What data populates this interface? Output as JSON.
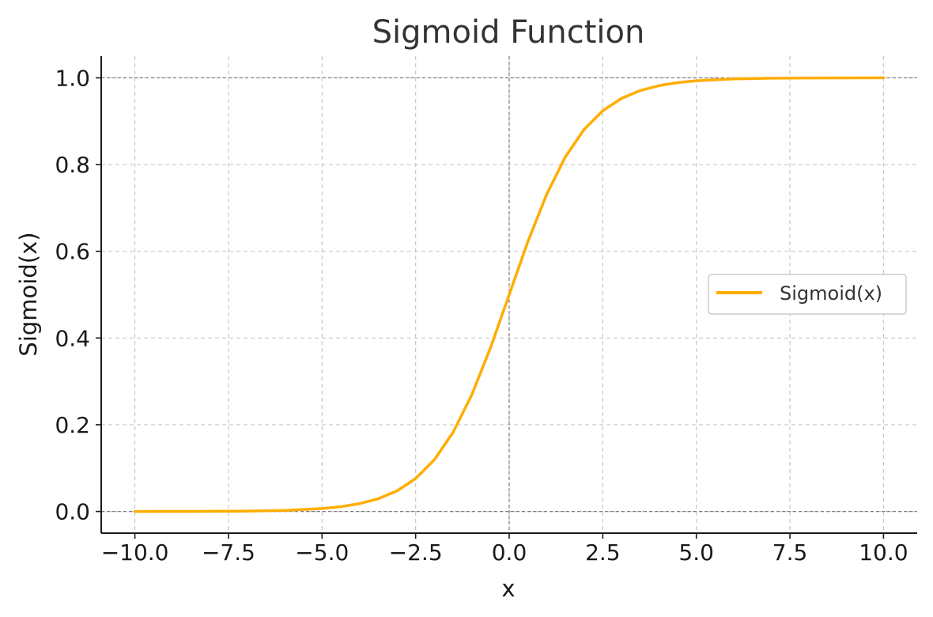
{
  "chart_data": {
    "type": "line",
    "title": "Sigmoid Function",
    "xlabel": "x",
    "ylabel": "Sigmoid(x)",
    "xlim": [
      -10.9,
      10.9
    ],
    "ylim": [
      -0.05,
      1.05
    ],
    "xticks": [
      -10.0,
      -7.5,
      -5.0,
      -2.5,
      0.0,
      2.5,
      5.0,
      7.5,
      10.0
    ],
    "xtick_labels": [
      "−10.0",
      "−7.5",
      "−5.0",
      "−2.5",
      "0.0",
      "2.5",
      "5.0",
      "7.5",
      "10.0"
    ],
    "yticks": [
      0.0,
      0.2,
      0.4,
      0.6,
      0.8,
      1.0
    ],
    "ytick_labels": [
      "0.0",
      "0.2",
      "0.4",
      "0.6",
      "0.8",
      "1.0"
    ],
    "grid": true,
    "reference_lines": {
      "x": [
        0
      ],
      "y": [
        0,
        1
      ]
    },
    "legend_position": "center-right",
    "series": [
      {
        "name": "Sigmoid(x)",
        "color": "#ffad00",
        "x": [
          -10,
          -9,
          -8,
          -7,
          -6,
          -5,
          -4.5,
          -4,
          -3.5,
          -3,
          -2.5,
          -2,
          -1.5,
          -1,
          -0.5,
          0,
          0.5,
          1,
          1.5,
          2,
          2.5,
          3,
          3.5,
          4,
          4.5,
          5,
          6,
          7,
          8,
          9,
          10
        ],
        "y": [
          0.0,
          0.0001,
          0.0003,
          0.0009,
          0.0025,
          0.0067,
          0.011,
          0.018,
          0.0293,
          0.0474,
          0.0759,
          0.1192,
          0.1824,
          0.2689,
          0.3775,
          0.5,
          0.6225,
          0.7311,
          0.8176,
          0.8808,
          0.9241,
          0.9526,
          0.9707,
          0.982,
          0.989,
          0.9933,
          0.9975,
          0.9991,
          0.9997,
          0.9999,
          1.0
        ]
      }
    ]
  }
}
